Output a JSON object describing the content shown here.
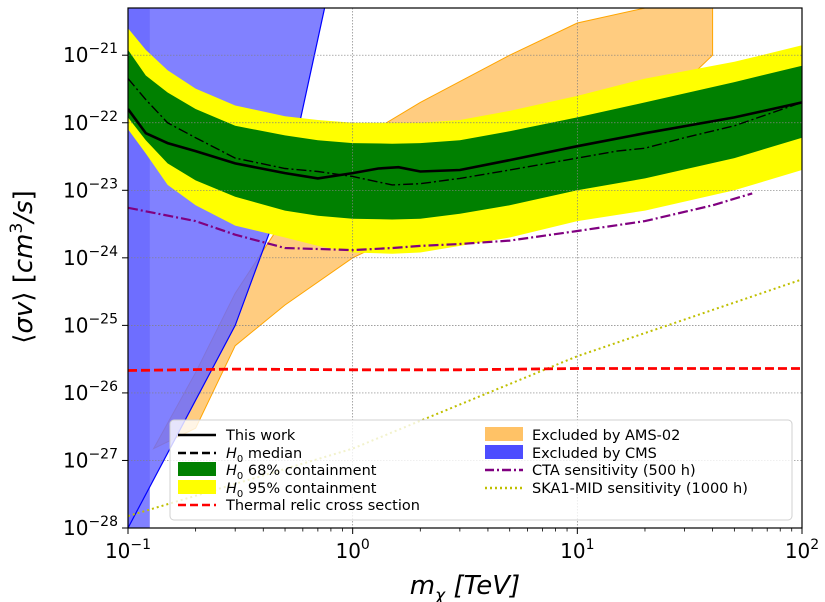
{
  "chart_data": {
    "type": "line",
    "x_scale": "log",
    "y_scale": "log",
    "xlim": [
      0.1,
      100
    ],
    "ylim": [
      1e-28,
      5e-21
    ],
    "grid": true,
    "legend_placement": "bottom",
    "xlabel": "m_χ [TeV]",
    "ylabel": "⟨σv⟩ [cm³/s]",
    "x_ticks": [
      {
        "value": 0.1,
        "base": "10",
        "exp": "−1"
      },
      {
        "value": 1,
        "base": "10",
        "exp": "0"
      },
      {
        "value": 10,
        "base": "10",
        "exp": "1"
      },
      {
        "value": 100,
        "base": "10",
        "exp": "2"
      }
    ],
    "y_ticks": [
      {
        "value": 1e-28,
        "base": "10",
        "exp": "−28"
      },
      {
        "value": 1e-27,
        "base": "10",
        "exp": "−27"
      },
      {
        "value": 1e-26,
        "base": "10",
        "exp": "−26"
      },
      {
        "value": 1e-25,
        "base": "10",
        "exp": "−25"
      },
      {
        "value": 1e-24,
        "base": "10",
        "exp": "−24"
      },
      {
        "value": 1e-23,
        "base": "10",
        "exp": "−23"
      },
      {
        "value": 1e-22,
        "base": "10",
        "exp": "−22"
      },
      {
        "value": 1e-21,
        "base": "10",
        "exp": "−21"
      }
    ],
    "colors": {
      "this_work": "#000000",
      "h0_median": "#000000",
      "band68": "#008000",
      "band95": "#ffff00",
      "thermal": "#ff0000",
      "ams02_fill": "#ffcc80",
      "ams02_edge": "#ffa500",
      "cms_fill": "#6b6bff",
      "cms_edge": "#0000ff",
      "cta": "#800080",
      "ska": "#bfbf00",
      "grid": "#808080"
    },
    "legend": [
      {
        "key": "this_work",
        "label": "This work",
        "style": "line-solid"
      },
      {
        "key": "h0_median",
        "label": "H_0 median",
        "style": "line-dashed"
      },
      {
        "key": "band68",
        "label": "H_0 68% containment",
        "style": "patch"
      },
      {
        "key": "band95",
        "label": "H_0 95% containment",
        "style": "patch"
      },
      {
        "key": "thermal",
        "label": "Thermal relic cross section",
        "style": "line-dashed"
      },
      {
        "key": "ams02",
        "label": "Excluded by AMS-02",
        "style": "patch"
      },
      {
        "key": "cms",
        "label": "Excluded by CMS",
        "style": "patch"
      },
      {
        "key": "cta",
        "label": "CTA sensitivity (500 h)",
        "style": "line-dashdot"
      },
      {
        "key": "ska",
        "label": "SKA1-MID sensitivity (1000 h)",
        "style": "line-dotted"
      }
    ],
    "series": [
      {
        "key": "this_work",
        "x": [
          0.1,
          0.12,
          0.15,
          0.2,
          0.3,
          0.5,
          0.7,
          1.0,
          1.3,
          1.6,
          2.0,
          3.0,
          5.0,
          10,
          20,
          50,
          100
        ],
        "y": [
          1.6e-22,
          7e-23,
          5e-23,
          3.8e-23,
          2.5e-23,
          1.8e-23,
          1.5e-23,
          1.8e-23,
          2.1e-23,
          2.2e-23,
          1.9e-23,
          2e-23,
          2.8e-23,
          4.5e-23,
          7e-23,
          1.2e-22,
          2e-22
        ]
      },
      {
        "key": "h0_median",
        "x": [
          0.1,
          0.12,
          0.15,
          0.2,
          0.3,
          0.5,
          0.7,
          1.0,
          1.5,
          2.0,
          3.0,
          5.0,
          10,
          15,
          20,
          30,
          50,
          100
        ],
        "y": [
          4.5e-22,
          2.2e-22,
          1e-22,
          6e-23,
          3e-23,
          2.1e-23,
          1.9e-23,
          1.6e-23,
          1.2e-23,
          1.25e-23,
          1.5e-23,
          2e-23,
          3e-23,
          3.8e-23,
          4.2e-23,
          6e-23,
          9e-23,
          2e-22
        ]
      },
      {
        "key": "band68",
        "x": [
          0.1,
          0.12,
          0.15,
          0.2,
          0.3,
          0.5,
          0.7,
          1.0,
          1.5,
          2.0,
          3.0,
          5.0,
          10,
          20,
          50,
          100
        ],
        "lower": [
          1.2e-22,
          5.5e-23,
          2.5e-23,
          1.4e-23,
          8e-24,
          5e-24,
          4.2e-24,
          3.8e-24,
          3.7e-24,
          3.8e-24,
          4.5e-24,
          6e-24,
          1e-23,
          1.5e-23,
          3e-23,
          6e-23
        ],
        "upper": [
          1.2e-21,
          5e-22,
          2.8e-22,
          1.6e-22,
          9e-23,
          6.5e-23,
          5.5e-23,
          5e-23,
          4.9e-23,
          5e-23,
          5.5e-23,
          7.5e-23,
          1.2e-22,
          2e-22,
          4e-22,
          7e-22
        ]
      },
      {
        "key": "band95",
        "x": [
          0.1,
          0.12,
          0.15,
          0.2,
          0.3,
          0.5,
          0.7,
          1.0,
          1.5,
          2.0,
          3.0,
          5.0,
          10,
          20,
          50,
          100
        ],
        "lower": [
          8e-23,
          3.5e-23,
          1.2e-23,
          6e-24,
          3e-24,
          2e-24,
          1.5e-24,
          1.2e-24,
          1.15e-24,
          1.2e-24,
          1.5e-24,
          2e-24,
          3.5e-24,
          5e-24,
          1e-23,
          2e-23
        ],
        "upper": [
          2.5e-21,
          1.2e-21,
          6e-22,
          3.2e-22,
          1.8e-22,
          1.25e-22,
          1.1e-22,
          1e-22,
          1e-22,
          1e-22,
          1.1e-22,
          1.5e-22,
          2.5e-22,
          4.5e-22,
          8e-22,
          1.4e-21
        ]
      },
      {
        "key": "thermal",
        "x": [
          0.1,
          0.3,
          1.0,
          3.0,
          10,
          100
        ],
        "y": [
          2.15e-26,
          2.25e-26,
          2.2e-26,
          2.2e-26,
          2.3e-26,
          2.3e-26
        ]
      },
      {
        "key": "cta",
        "x": [
          0.1,
          0.2,
          0.3,
          0.5,
          0.7,
          1.0,
          1.5,
          2.0,
          3.0,
          5.0,
          10,
          20,
          40,
          60
        ],
        "y": [
          5.5e-24,
          3.5e-24,
          2.2e-24,
          1.4e-24,
          1.35e-24,
          1.3e-24,
          1.4e-24,
          1.5e-24,
          1.6e-24,
          1.8e-24,
          2.5e-24,
          3.5e-24,
          6e-24,
          9e-24
        ]
      },
      {
        "key": "ska",
        "x": [
          0.1,
          1.0,
          10,
          100
        ],
        "y": [
          1.5e-28,
          1.5e-27,
          3.5e-26,
          4.8e-25
        ]
      },
      {
        "key": "ams02",
        "upper_x": [
          0.13,
          0.2,
          0.3,
          0.5,
          1.0,
          2.0,
          5.0,
          10,
          20,
          30,
          40
        ],
        "upper_y": [
          1.5e-27,
          2e-26,
          3e-25,
          4e-24,
          5e-23,
          2e-22,
          1e-21,
          3e-21,
          5e-21,
          5e-21,
          5e-21
        ],
        "lower_x": [
          0.13,
          0.2,
          0.3,
          0.5,
          1.0,
          2.0,
          5.0,
          10,
          20,
          30,
          40
        ],
        "lower_y": [
          1.5e-27,
          3e-27,
          5e-26,
          2e-25,
          1e-24,
          3e-24,
          1e-23,
          3e-23,
          1e-22,
          4e-22,
          1e-21
        ]
      },
      {
        "key": "cms",
        "edge_x": [
          0.1,
          0.3,
          0.5,
          0.75
        ],
        "edge_y": [
          1e-28,
          1e-25,
          1e-23,
          5e-21
        ],
        "band_x_max": 0.125
      }
    ]
  }
}
